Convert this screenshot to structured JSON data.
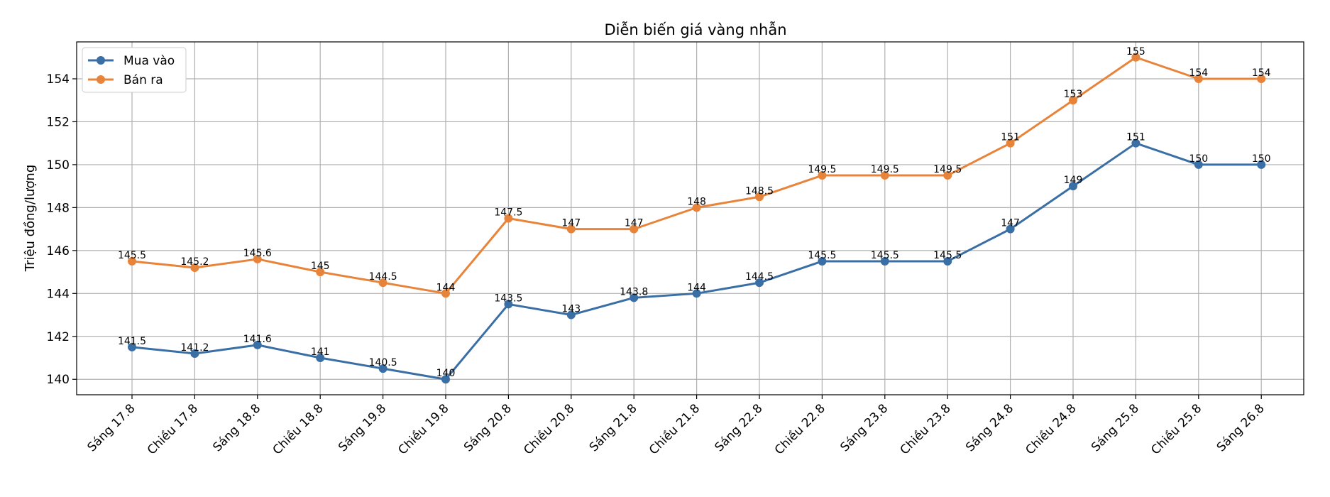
{
  "chart_data": {
    "type": "line",
    "title": "Diễn biến giá vàng nhẫn",
    "xlabel": "",
    "ylabel": "Triệu đồng/lượng",
    "categories": [
      "Sáng 17.8",
      "Chiều 17.8",
      "Sáng 18.8",
      "Chiều 18.8",
      "Sáng 19.8",
      "Chiều 19.8",
      "Sáng 20.8",
      "Chiều 20.8",
      "Sáng 21.8",
      "Chiều 21.8",
      "Sáng 22.8",
      "Chiều 22.8",
      "Sáng 23.8",
      "Chiều 23.8",
      "Sáng 24.8",
      "Chiều 24.8",
      "Sáng 25.8",
      "Chiều 25.8",
      "Sáng 26.8"
    ],
    "series": [
      {
        "name": "Mua vào",
        "color": "#3a6fa6",
        "values": [
          141.5,
          141.2,
          141.6,
          141,
          140.5,
          140,
          143.5,
          143,
          143.8,
          144,
          144.5,
          145.5,
          145.5,
          145.5,
          147,
          149,
          151,
          150,
          150
        ]
      },
      {
        "name": "Bán ra",
        "color": "#e8843a",
        "values": [
          145.5,
          145.2,
          145.6,
          145,
          144.5,
          144,
          147.5,
          147,
          147,
          148,
          148.5,
          149.5,
          149.5,
          149.5,
          151,
          153,
          155,
          154,
          154
        ]
      }
    ],
    "ylim": [
      139.28,
      155.72
    ],
    "yticks": [
      140,
      142,
      144,
      146,
      148,
      150,
      152,
      154
    ],
    "grid": true,
    "legend_position": "top-left"
  }
}
